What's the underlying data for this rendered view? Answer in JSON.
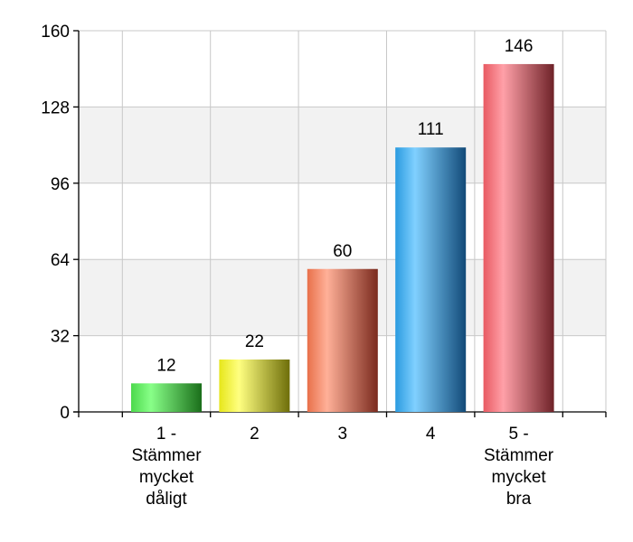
{
  "chart_data": {
    "type": "bar",
    "categories": [
      [
        "1 -",
        "Stämmer",
        "mycket",
        "dåligt"
      ],
      [
        "2"
      ],
      [
        "3"
      ],
      [
        "4"
      ],
      [
        "5 -",
        "Stämmer",
        "mycket",
        "bra"
      ]
    ],
    "values": [
      12,
      22,
      60,
      111,
      146
    ],
    "bar_colors": [
      "#4cd94c",
      "#e6e61a",
      "#e8704a",
      "#2a9be0",
      "#e85a62"
    ],
    "bar_dark_colors": [
      "#1a6e1a",
      "#6e6e0a",
      "#7a2a1e",
      "#124a78",
      "#6e2228"
    ],
    "bar_light_colors": [
      "#88ff88",
      "#ffff80",
      "#ffb098",
      "#80d0ff",
      "#ffa0a8"
    ],
    "y_ticks": [
      0,
      32,
      64,
      96,
      128,
      160
    ],
    "ylim": [
      0,
      160
    ],
    "grid": true,
    "legend": "none"
  }
}
